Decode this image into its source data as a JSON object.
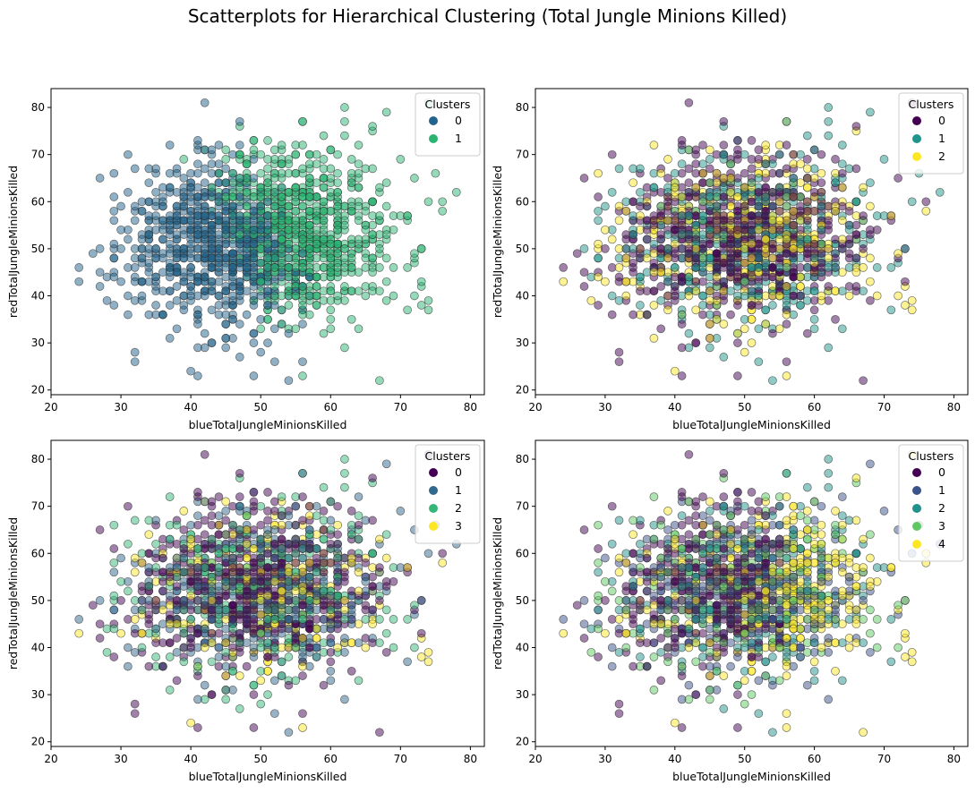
{
  "figure": {
    "title": "Scatterplots for Hierarchical Clustering (Total Jungle Minions Killed)"
  },
  "colors": {
    "palette_2": [
      "#21638c",
      "#2ab472"
    ],
    "palette_3": [
      "#440154",
      "#1f958b",
      "#fde725"
    ],
    "palette_4": [
      "#440154",
      "#31688e",
      "#35b779",
      "#fde725"
    ],
    "palette_5": [
      "#440154",
      "#3b528b",
      "#21918c",
      "#5ec962",
      "#fde725"
    ],
    "marker_edge": "#333333",
    "marker_alpha": 0.5
  },
  "chart_data": [
    {
      "type": "scatter",
      "xlabel": "blueTotalJungleMinionsKilled",
      "ylabel": "redTotalJungleMinionsKilled",
      "xlim": [
        20,
        82
      ],
      "ylim": [
        19,
        84
      ],
      "xticks": [
        20,
        30,
        40,
        50,
        60,
        70,
        80
      ],
      "yticks": [
        20,
        30,
        40,
        50,
        60,
        70,
        80
      ],
      "legend": {
        "title": "Clusters",
        "position": "top-right",
        "labels": [
          "0",
          "1"
        ]
      },
      "n_clusters": 2,
      "cloud": {
        "x_mean": 50,
        "x_sd": 9,
        "y_mean": 52,
        "y_sd": 9.5,
        "x_range": [
          22,
          79
        ],
        "y_range": [
          22,
          81
        ],
        "count": 1500
      }
    },
    {
      "type": "scatter",
      "xlabel": "blueTotalJungleMinionsKilled",
      "ylabel": "redTotalJungleMinionsKilled",
      "xlim": [
        20,
        82
      ],
      "ylim": [
        19,
        84
      ],
      "xticks": [
        20,
        30,
        40,
        50,
        60,
        70,
        80
      ],
      "yticks": [
        20,
        30,
        40,
        50,
        60,
        70,
        80
      ],
      "legend": {
        "title": "Clusters",
        "position": "top-right",
        "labels": [
          "0",
          "1",
          "2"
        ]
      },
      "n_clusters": 3,
      "cloud": {
        "x_mean": 50,
        "x_sd": 9,
        "y_mean": 52,
        "y_sd": 9.5,
        "x_range": [
          22,
          79
        ],
        "y_range": [
          22,
          81
        ],
        "count": 1500
      }
    },
    {
      "type": "scatter",
      "xlabel": "blueTotalJungleMinionsKilled",
      "ylabel": "redTotalJungleMinionsKilled",
      "xlim": [
        20,
        82
      ],
      "ylim": [
        19,
        84
      ],
      "xticks": [
        20,
        30,
        40,
        50,
        60,
        70,
        80
      ],
      "yticks": [
        20,
        30,
        40,
        50,
        60,
        70,
        80
      ],
      "legend": {
        "title": "Clusters",
        "position": "top-right",
        "labels": [
          "0",
          "1",
          "2",
          "3"
        ]
      },
      "n_clusters": 4,
      "cloud": {
        "x_mean": 50,
        "x_sd": 9,
        "y_mean": 52,
        "y_sd": 9.5,
        "x_range": [
          22,
          79
        ],
        "y_range": [
          22,
          81
        ],
        "count": 1500
      }
    },
    {
      "type": "scatter",
      "xlabel": "blueTotalJungleMinionsKilled",
      "ylabel": "redTotalJungleMinionsKilled",
      "xlim": [
        20,
        82
      ],
      "ylim": [
        19,
        84
      ],
      "xticks": [
        20,
        30,
        40,
        50,
        60,
        70,
        80
      ],
      "yticks": [
        20,
        30,
        40,
        50,
        60,
        70,
        80
      ],
      "legend": {
        "title": "Clusters",
        "position": "top-right",
        "labels": [
          "0",
          "1",
          "2",
          "3",
          "4"
        ]
      },
      "n_clusters": 5,
      "cloud": {
        "x_mean": 50,
        "x_sd": 9,
        "y_mean": 52,
        "y_sd": 9.5,
        "x_range": [
          22,
          79
        ],
        "y_range": [
          22,
          81
        ],
        "count": 1500
      }
    }
  ]
}
